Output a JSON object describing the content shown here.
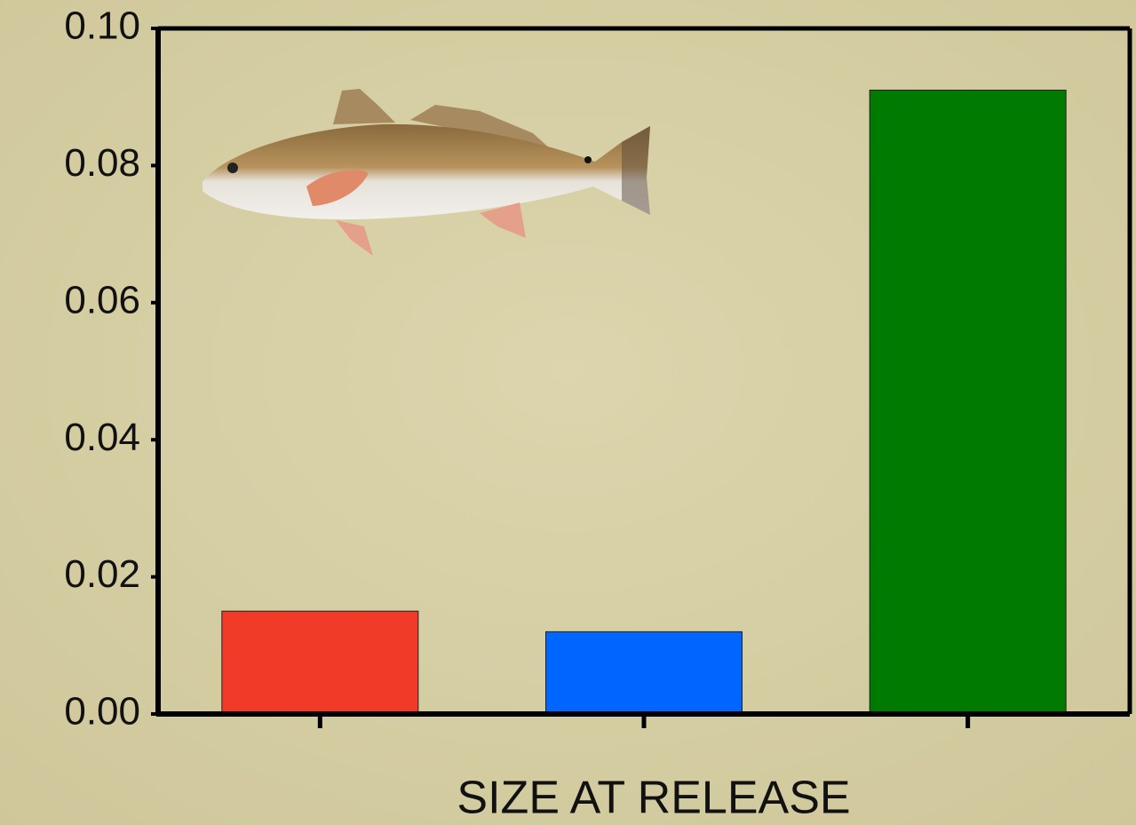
{
  "chart_data": {
    "type": "bar",
    "x_label": "SIZE AT RELEASE",
    "categories": [
      null,
      null,
      null
    ],
    "values": [
      0.015,
      0.012,
      0.091
    ],
    "colors": [
      "#f13a27",
      "#0066ff",
      "#007a00"
    ],
    "ylim": [
      0,
      0.1
    ],
    "yticks": [
      {
        "value": 0,
        "label": "0.00"
      },
      0.02,
      0.04,
      0.06,
      0.08,
      {
        "value": 0.1,
        "label": "0.10"
      }
    ],
    "grid": false
  }
}
